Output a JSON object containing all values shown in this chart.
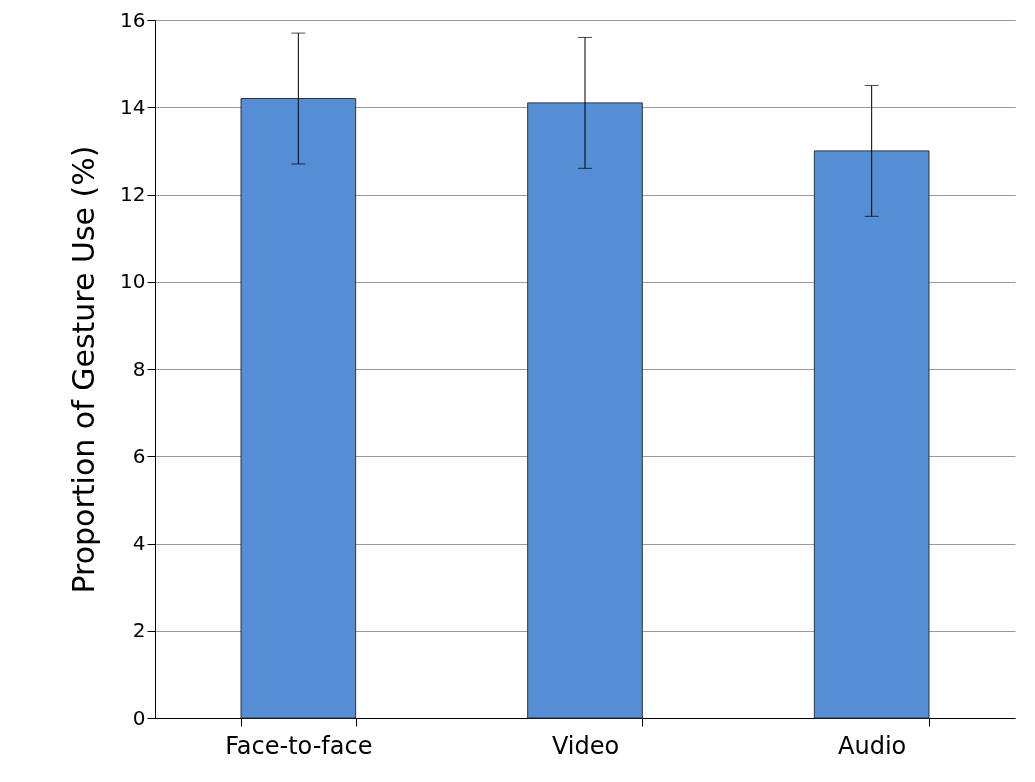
{
  "chart_data": {
    "type": "bar",
    "ylabel": "Proportion of Gesture Use (%)",
    "categories": [
      "Face-to-face",
      "Video",
      "Audio"
    ],
    "values": [
      14.2,
      14.1,
      13.0
    ],
    "errors": [
      1.5,
      1.5,
      1.5
    ],
    "color": "#558ed5",
    "ylim": [
      0,
      16
    ],
    "yticks": [
      0,
      2,
      4,
      6,
      8,
      10,
      12,
      14,
      16
    ],
    "grid": "y"
  }
}
